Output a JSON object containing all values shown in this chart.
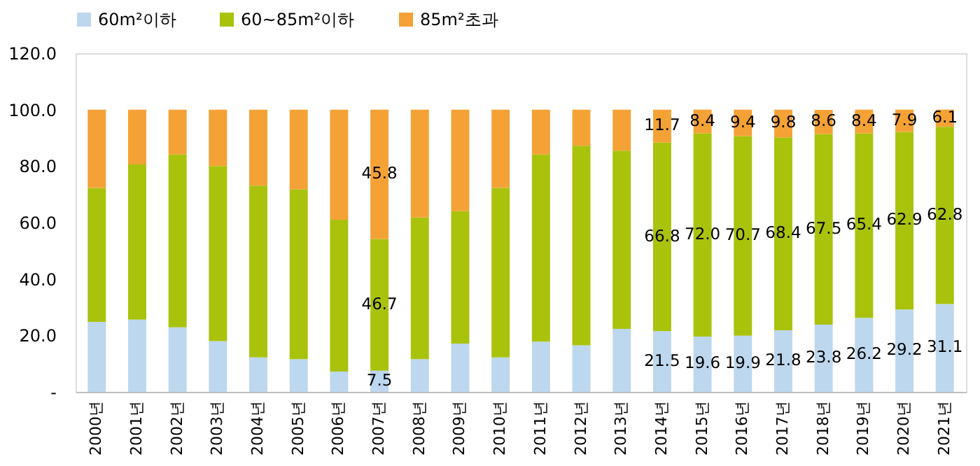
{
  "chart_data": {
    "type": "bar",
    "stacked": true,
    "legend": "top",
    "categories": [
      "2000년",
      "2001년",
      "2002년",
      "2003년",
      "2004년",
      "2005년",
      "2006년",
      "2007년",
      "2008년",
      "2009년",
      "2010년",
      "2011년",
      "2012년",
      "2013년",
      "2014년",
      "2015년",
      "2016년",
      "2017년",
      "2018년",
      "2019년",
      "2020년",
      "2021년"
    ],
    "series": [
      {
        "name": "60m²이하",
        "color": "#bdd7ee",
        "values": [
          24.8,
          25.6,
          22.9,
          18.0,
          12.2,
          11.6,
          7.2,
          7.5,
          11.6,
          17.1,
          12.2,
          17.8,
          16.5,
          22.3,
          21.5,
          19.6,
          19.9,
          21.8,
          23.8,
          26.2,
          29.2,
          31.1
        ],
        "value_labels": [
          null,
          null,
          null,
          null,
          null,
          null,
          null,
          "7.5",
          null,
          null,
          null,
          null,
          null,
          null,
          "21.5",
          "19.6",
          "19.9",
          "21.8",
          "23.8",
          "26.2",
          "29.2",
          "31.1"
        ]
      },
      {
        "name": "60~85m²이하",
        "color": "#a9c20c",
        "values": [
          47.5,
          55.0,
          61.2,
          62.0,
          60.9,
          60.1,
          53.8,
          46.7,
          50.2,
          46.9,
          60.1,
          66.3,
          70.7,
          63.2,
          66.8,
          72.0,
          70.7,
          68.4,
          67.5,
          65.4,
          62.9,
          62.8
        ],
        "value_labels": [
          null,
          null,
          null,
          null,
          null,
          null,
          null,
          "46.7",
          null,
          null,
          null,
          null,
          null,
          null,
          "66.8",
          "72.0",
          "70.7",
          "68.4",
          "67.5",
          "65.4",
          "62.9",
          "62.8"
        ]
      },
      {
        "name": "85m²초과",
        "color": "#f4a236",
        "values": [
          27.7,
          19.4,
          15.9,
          20.0,
          26.9,
          28.3,
          39.0,
          45.8,
          38.2,
          36.0,
          27.7,
          15.9,
          12.8,
          14.5,
          11.7,
          8.4,
          9.4,
          9.8,
          8.6,
          8.4,
          7.9,
          6.1
        ],
        "value_labels": [
          null,
          null,
          null,
          null,
          null,
          null,
          null,
          "45.8",
          null,
          null,
          null,
          null,
          null,
          null,
          "11.7",
          "8.4",
          "9.4",
          "9.8",
          "8.6",
          "8.4",
          "7.9",
          "6.1"
        ]
      }
    ],
    "ylim": [
      0,
      120
    ],
    "yticks": [
      {
        "value": 0,
        "label": "-"
      },
      {
        "value": 20,
        "label": "20.0"
      },
      {
        "value": 40,
        "label": "40.0"
      },
      {
        "value": 60,
        "label": "60.0"
      },
      {
        "value": 80,
        "label": "80.0"
      },
      {
        "value": 100,
        "label": "100.0"
      },
      {
        "value": 120,
        "label": "120.0"
      }
    ],
    "grid": false
  }
}
